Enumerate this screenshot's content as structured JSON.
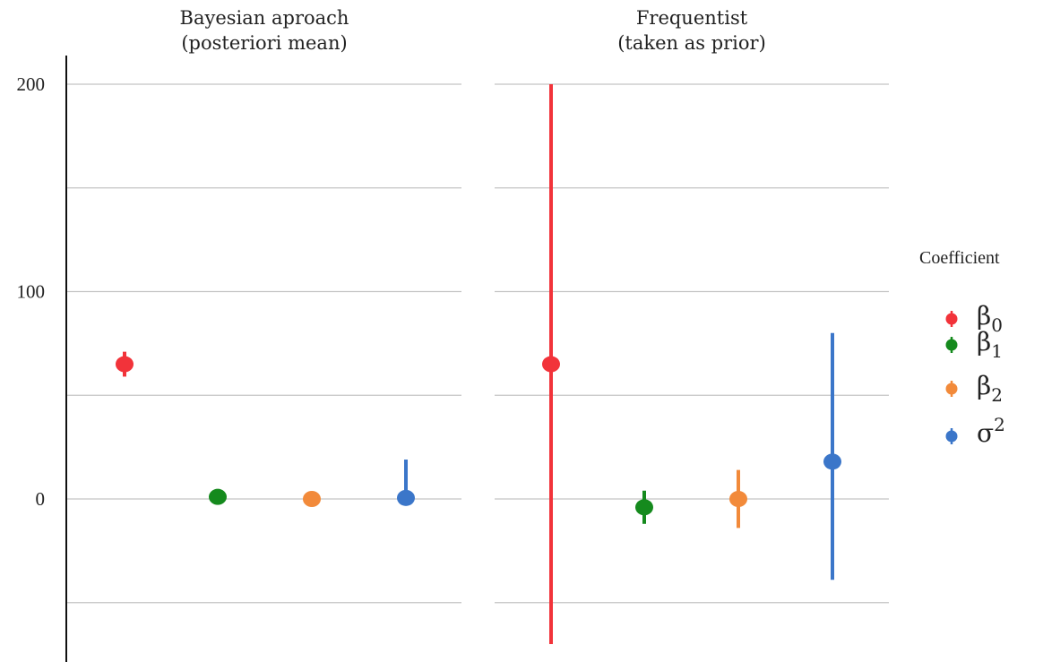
{
  "chart_data": {
    "type": "pointrange",
    "ylim": [
      -70,
      215
    ],
    "yticks": [
      {
        "value": 0,
        "label": "0"
      },
      {
        "value": 100,
        "label": "100"
      },
      {
        "value": 200,
        "label": "200"
      }
    ],
    "gridlines": [
      -50,
      0,
      50,
      100,
      150,
      200
    ],
    "legend": {
      "title": "Coefficient",
      "placement": "right",
      "entries": [
        {
          "key": "b0",
          "base": "β",
          "sub": "0",
          "sup": "",
          "color": "#f2333a"
        },
        {
          "key": "b1",
          "base": "β",
          "sub": "1",
          "sup": "",
          "color": "#158a1d"
        },
        {
          "key": "b2",
          "base": "β",
          "sub": "2",
          "sup": "",
          "color": "#f28a3a"
        },
        {
          "key": "s2",
          "base": "σ",
          "sub": "",
          "sup": "2",
          "color": "#3b76c9"
        }
      ]
    },
    "panels": [
      {
        "title_line1": "Bayesian aproach",
        "title_line2": "(posteriori mean)",
        "points": [
          {
            "key": "b0",
            "y": 65,
            "low": 59,
            "high": 71
          },
          {
            "key": "b1",
            "y": 1,
            "low": 0,
            "high": 2
          },
          {
            "key": "b2",
            "y": 0,
            "low": -1,
            "high": 1
          },
          {
            "key": "s2",
            "y": 0.5,
            "low": 0,
            "high": 19
          }
        ]
      },
      {
        "title_line1": "Frequentist",
        "title_line2": "(taken as prior)",
        "points": [
          {
            "key": "b0",
            "y": 65,
            "low": -70,
            "high": 200
          },
          {
            "key": "b1",
            "y": -4,
            "low": -12,
            "high": 4
          },
          {
            "key": "b2",
            "y": 0,
            "low": -14,
            "high": 14
          },
          {
            "key": "s2",
            "y": 18,
            "low": -39,
            "high": 80
          }
        ]
      }
    ]
  }
}
